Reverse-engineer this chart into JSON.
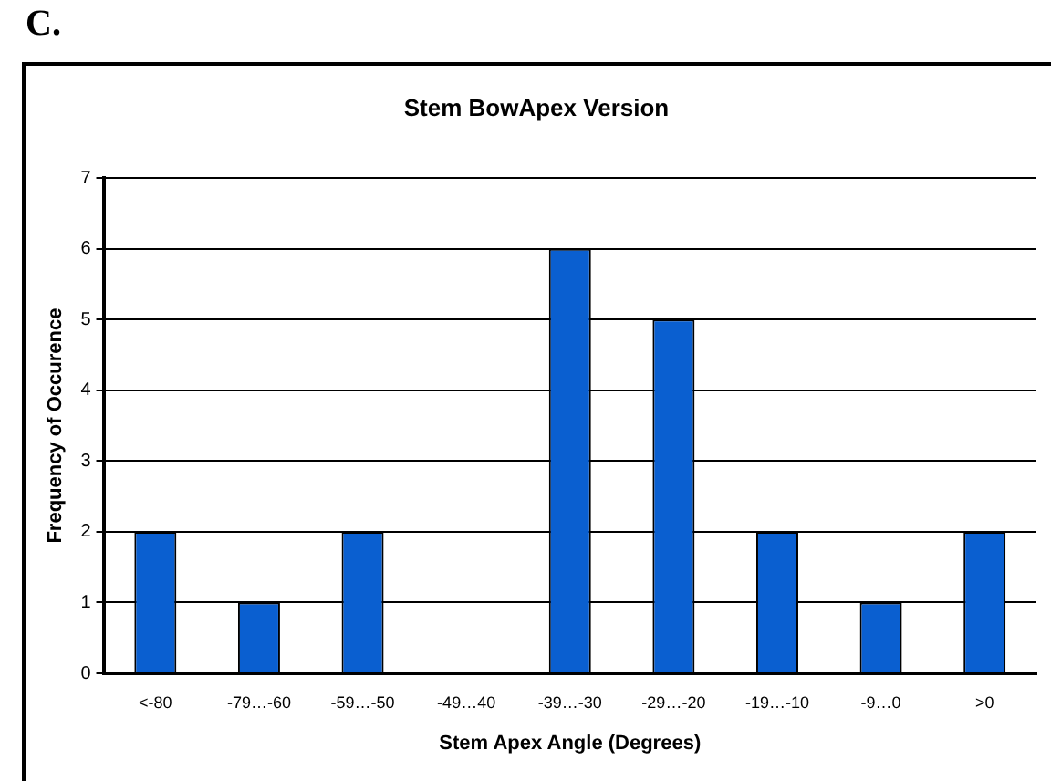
{
  "chart_data": {
    "type": "bar",
    "title": "Stem BowApex Version",
    "xlabel": "Stem Apex Angle (Degrees)",
    "ylabel": "Frequency of Occurence",
    "annotations": [
      "C."
    ],
    "categories": [
      "<-80",
      "-79…-60",
      "-59…-50",
      "-49…40",
      "-39…-30",
      "-29…-20",
      "-19…-10",
      "-9…0",
      ">0"
    ],
    "values": [
      2,
      1,
      2,
      0,
      6,
      5,
      2,
      1,
      2
    ],
    "color": "#0a5fd0",
    "ylim": [
      0,
      7
    ],
    "yticks": [
      0,
      1,
      2,
      3,
      4,
      5,
      6,
      7
    ],
    "grid": "y"
  }
}
